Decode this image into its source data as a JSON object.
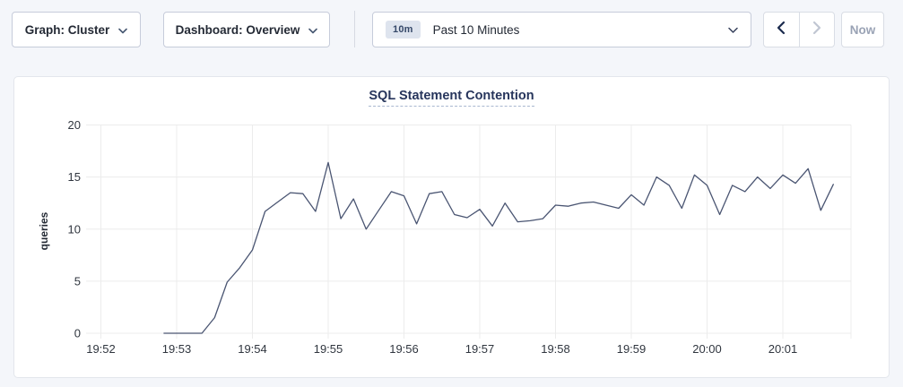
{
  "toolbar": {
    "graph_dropdown": "Graph: Cluster",
    "dashboard_dropdown": "Dashboard: Overview",
    "range_badge": "10m",
    "range_label": "Past 10 Minutes",
    "now_label": "Now"
  },
  "icons": {
    "dropdown_chevron": "chevron-down",
    "prev": "chevron-left",
    "next": "chevron-right"
  },
  "colors": {
    "line": "#4a5572",
    "grid": "#ececec",
    "axis_text": "#30363f",
    "title": "#27355c",
    "enabled_arrow": "#1b2b4d",
    "disabled_arrow": "#c0c6d2"
  },
  "chart_data": {
    "type": "line",
    "title": "SQL Statement Contention",
    "ylabel": "queries",
    "xlabel": "",
    "x_ticks": [
      "19:52",
      "19:53",
      "19:54",
      "19:55",
      "19:56",
      "19:57",
      "19:58",
      "19:59",
      "20:00",
      "20:01"
    ],
    "y_ticks": [
      0,
      5,
      10,
      15,
      20
    ],
    "ylim": [
      0,
      20
    ],
    "grid": true,
    "legend": "none",
    "series": [
      {
        "name": "queries",
        "start_time": "19:52:50",
        "interval_sec": 10,
        "values": [
          0,
          0,
          0,
          0,
          1.5,
          4.9,
          6.3,
          8.0,
          11.7,
          12.6,
          13.5,
          13.4,
          11.7,
          16.4,
          11.0,
          12.9,
          10.0,
          11.8,
          13.6,
          13.2,
          10.5,
          13.4,
          13.6,
          11.4,
          11.1,
          11.9,
          10.3,
          12.5,
          10.7,
          10.8,
          11.0,
          12.3,
          12.2,
          12.5,
          12.6,
          12.3,
          12.0,
          13.3,
          12.3,
          15.0,
          14.2,
          12.0,
          15.2,
          14.2,
          11.4,
          14.2,
          13.6,
          15.0,
          13.9,
          15.2,
          14.4,
          15.8,
          11.8,
          14.3
        ]
      }
    ]
  }
}
